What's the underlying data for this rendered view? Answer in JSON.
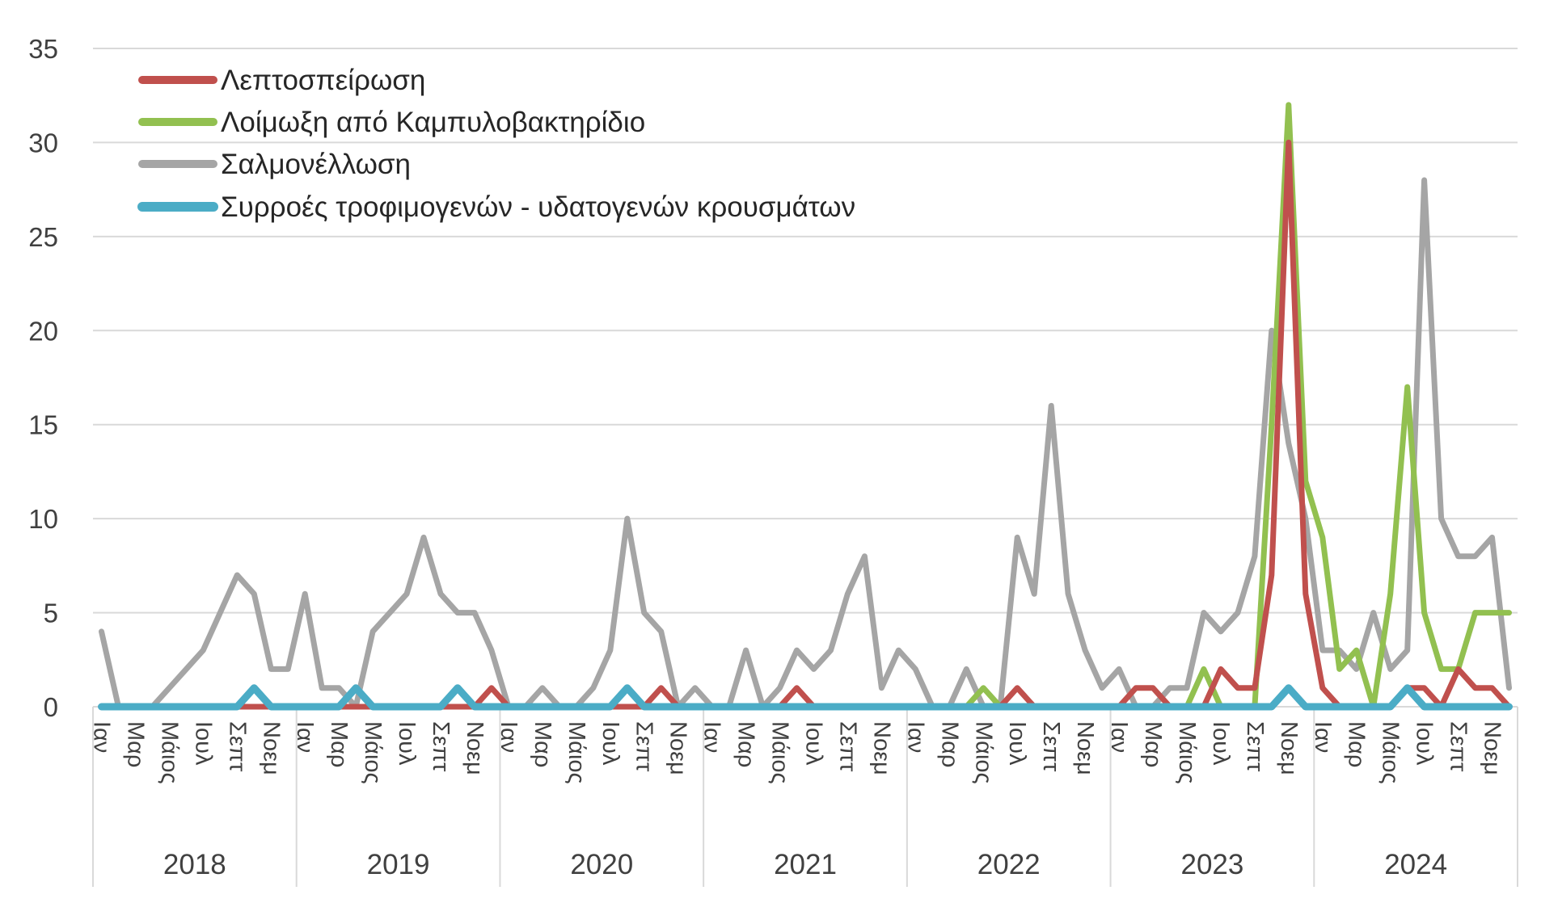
{
  "chart_data": {
    "type": "line",
    "ylim": [
      0,
      35
    ],
    "yticks": [
      0,
      5,
      10,
      15,
      20,
      25,
      30,
      35
    ],
    "grid": true,
    "legend_position": "top-left",
    "years": [
      "2018",
      "2019",
      "2020",
      "2021",
      "2022",
      "2023",
      "2024"
    ],
    "month_labels": [
      "Ιαν",
      "Μαρ",
      "Μάιος",
      "Ιουλ",
      "Σεπτ",
      "Νοεμ"
    ],
    "months_per_year": 12,
    "series": [
      {
        "name": "Σαλμονέλλωση",
        "color": "#a5a5a5",
        "values": [
          4,
          0,
          0,
          0,
          1,
          2,
          3,
          5,
          7,
          6,
          2,
          2,
          6,
          1,
          1,
          0,
          4,
          5,
          6,
          9,
          6,
          5,
          5,
          3,
          0,
          0,
          1,
          0,
          0,
          1,
          3,
          10,
          5,
          4,
          0,
          1,
          0,
          0,
          3,
          0,
          1,
          3,
          2,
          3,
          6,
          8,
          1,
          3,
          2,
          0,
          0,
          2,
          0,
          0,
          9,
          6,
          16,
          6,
          3,
          1,
          2,
          0,
          0,
          1,
          1,
          5,
          4,
          5,
          8,
          20,
          14,
          10,
          3,
          3,
          2,
          5,
          2,
          3,
          28,
          10,
          8,
          8,
          9,
          1
        ]
      },
      {
        "name": "Λοίμωξη από Καμπυλοβακτηρίδιο",
        "color": "#92c050",
        "values": [
          0,
          0,
          0,
          0,
          0,
          0,
          0,
          0,
          0,
          0,
          0,
          0,
          0,
          0,
          0,
          0,
          0,
          0,
          0,
          0,
          0,
          0,
          0,
          0,
          0,
          0,
          0,
          0,
          0,
          0,
          0,
          0,
          0,
          0,
          0,
          0,
          0,
          0,
          0,
          0,
          0,
          0,
          0,
          0,
          0,
          0,
          0,
          0,
          0,
          0,
          0,
          0,
          1,
          0,
          0,
          0,
          0,
          0,
          0,
          0,
          0,
          0,
          0,
          0,
          0,
          2,
          0,
          0,
          0,
          15,
          32,
          12,
          9,
          2,
          3,
          0,
          6,
          17,
          5,
          2,
          2,
          5,
          5,
          5
        ]
      },
      {
        "name": "Λεπτοσπείρωση",
        "color": "#c0504d",
        "values": [
          0,
          0,
          0,
          0,
          0,
          0,
          0,
          0,
          0,
          0,
          0,
          0,
          0,
          0,
          0,
          0,
          0,
          0,
          0,
          0,
          0,
          0,
          0,
          1,
          0,
          0,
          0,
          0,
          0,
          0,
          0,
          0,
          0,
          1,
          0,
          0,
          0,
          0,
          0,
          0,
          0,
          1,
          0,
          0,
          0,
          0,
          0,
          0,
          0,
          0,
          0,
          0,
          0,
          0,
          1,
          0,
          0,
          0,
          0,
          0,
          0,
          1,
          1,
          0,
          0,
          0,
          2,
          1,
          1,
          7,
          30,
          6,
          1,
          0,
          0,
          0,
          0,
          1,
          1,
          0,
          2,
          1,
          1,
          0
        ]
      },
      {
        "name": "Συρροές τροφιμογενών - υδατογενών κρουσμάτων",
        "color": "#4bacc6",
        "values": [
          0,
          0,
          0,
          0,
          0,
          0,
          0,
          0,
          0,
          1,
          0,
          0,
          0,
          0,
          0,
          1,
          0,
          0,
          0,
          0,
          0,
          1,
          0,
          0,
          0,
          0,
          0,
          0,
          0,
          0,
          0,
          1,
          0,
          0,
          0,
          0,
          0,
          0,
          0,
          0,
          0,
          0,
          0,
          0,
          0,
          0,
          0,
          0,
          0,
          0,
          0,
          0,
          0,
          0,
          0,
          0,
          0,
          0,
          0,
          0,
          0,
          0,
          0,
          0,
          0,
          0,
          0,
          0,
          0,
          0,
          1,
          0,
          0,
          0,
          0,
          0,
          0,
          1,
          0,
          0,
          0,
          0,
          0,
          0
        ]
      }
    ],
    "legend_order": [
      2,
      1,
      0,
      3
    ]
  }
}
